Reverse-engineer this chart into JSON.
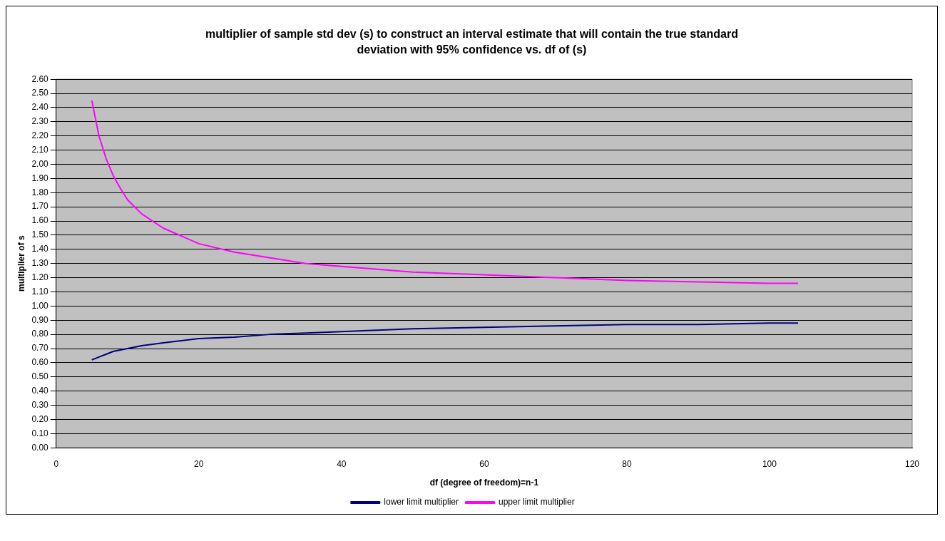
{
  "chart_data": {
    "type": "line",
    "title": "multiplier of sample std dev (s) to construct an interval estimate that will contain the true standard deviation with 95% confidence vs. df of (s)",
    "xlabel": "df (degree of freedom)=n-1",
    "ylabel": "multiplier of s",
    "x": [
      5,
      6,
      7,
      8,
      9,
      10,
      12,
      15,
      20,
      25,
      30,
      35,
      40,
      45,
      50,
      60,
      70,
      80,
      90,
      100,
      104
    ],
    "series": [
      {
        "name": "lower limit multiplier",
        "color": "#000080",
        "values": [
          0.62,
          0.64,
          0.66,
          0.68,
          0.69,
          0.7,
          0.72,
          0.74,
          0.77,
          0.78,
          0.8,
          0.81,
          0.82,
          0.83,
          0.84,
          0.85,
          0.86,
          0.87,
          0.87,
          0.88,
          0.88
        ]
      },
      {
        "name": "upper limit multiplier",
        "color": "#ff00ff",
        "values": [
          2.45,
          2.2,
          2.04,
          1.92,
          1.83,
          1.75,
          1.65,
          1.55,
          1.44,
          1.38,
          1.34,
          1.3,
          1.28,
          1.26,
          1.24,
          1.22,
          1.2,
          1.18,
          1.17,
          1.16,
          1.16
        ]
      }
    ],
    "xlim": [
      0,
      120
    ],
    "xticks": [
      0,
      20,
      40,
      60,
      80,
      100,
      120
    ],
    "ylim": [
      0,
      2.6
    ],
    "yticks": [
      {
        "value": 0,
        "label": "0.00"
      },
      {
        "value": 0.1,
        "label": "0.10"
      },
      {
        "value": 0.2,
        "label": "0.20"
      },
      {
        "value": 0.3,
        "label": "0.30"
      },
      {
        "value": 0.4,
        "label": "0.40"
      },
      {
        "value": 0.5,
        "label": "0.50"
      },
      {
        "value": 0.6,
        "label": "0.60"
      },
      {
        "value": 0.7,
        "label": "0.70"
      },
      {
        "value": 0.8,
        "label": "0.80"
      },
      {
        "value": 0.9,
        "label": "0.90"
      },
      {
        "value": 1,
        "label": "1.00"
      },
      {
        "value": 1.1,
        "label": "1.10"
      },
      {
        "value": 1.2,
        "label": "1.20"
      },
      {
        "value": 1.3,
        "label": "1.30"
      },
      {
        "value": 1.4,
        "label": "1.40"
      },
      {
        "value": 1.5,
        "label": "1.50"
      },
      {
        "value": 1.6,
        "label": "1.60"
      },
      {
        "value": 1.7,
        "label": "1.70"
      },
      {
        "value": 1.8,
        "label": "1.80"
      },
      {
        "value": 1.9,
        "label": "1.90"
      },
      {
        "value": 2,
        "label": "2.00"
      },
      {
        "value": 2.1,
        "label": "2.10"
      },
      {
        "value": 2.2,
        "label": "2.20"
      },
      {
        "value": 2.3,
        "label": "2.30"
      },
      {
        "value": 2.4,
        "label": "2.40"
      },
      {
        "value": 2.5,
        "label": "2.50"
      },
      {
        "value": 2.6,
        "label": "2.60"
      }
    ],
    "grid": "y",
    "legend": "bottom",
    "marker": "none",
    "line_style": "solid"
  }
}
